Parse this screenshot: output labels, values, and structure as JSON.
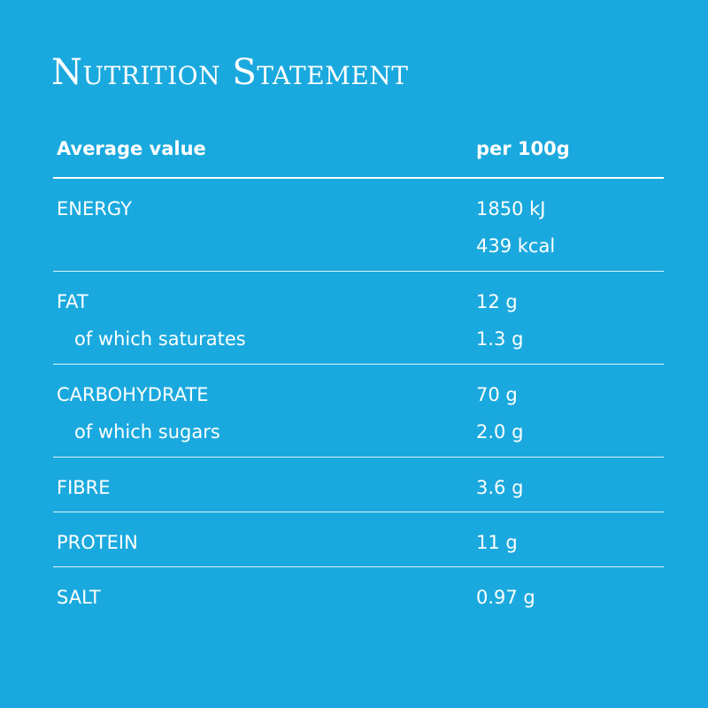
{
  "title": "Nutrition Statement",
  "header": {
    "label": "Average value",
    "value": "per 100g"
  },
  "rows": [
    {
      "lines": [
        {
          "label": "ENERGY",
          "value": "1850 kJ"
        },
        {
          "label": "",
          "value": "439 kcal"
        }
      ]
    },
    {
      "lines": [
        {
          "label": "FAT",
          "value": "12 g"
        },
        {
          "label": "of which saturates",
          "value": "1.3 g"
        }
      ]
    },
    {
      "lines": [
        {
          "label": "CARBOHYDRATE",
          "value": "70 g"
        },
        {
          "label": "of which sugars",
          "value": "2.0 g"
        }
      ]
    },
    {
      "lines": [
        {
          "label": "FIBRE",
          "value": "3.6 g"
        }
      ]
    },
    {
      "lines": [
        {
          "label": "PROTEIN",
          "value": "11 g"
        }
      ]
    },
    {
      "lines": [
        {
          "label": "SALT",
          "value": "0.97 g"
        }
      ]
    }
  ]
}
